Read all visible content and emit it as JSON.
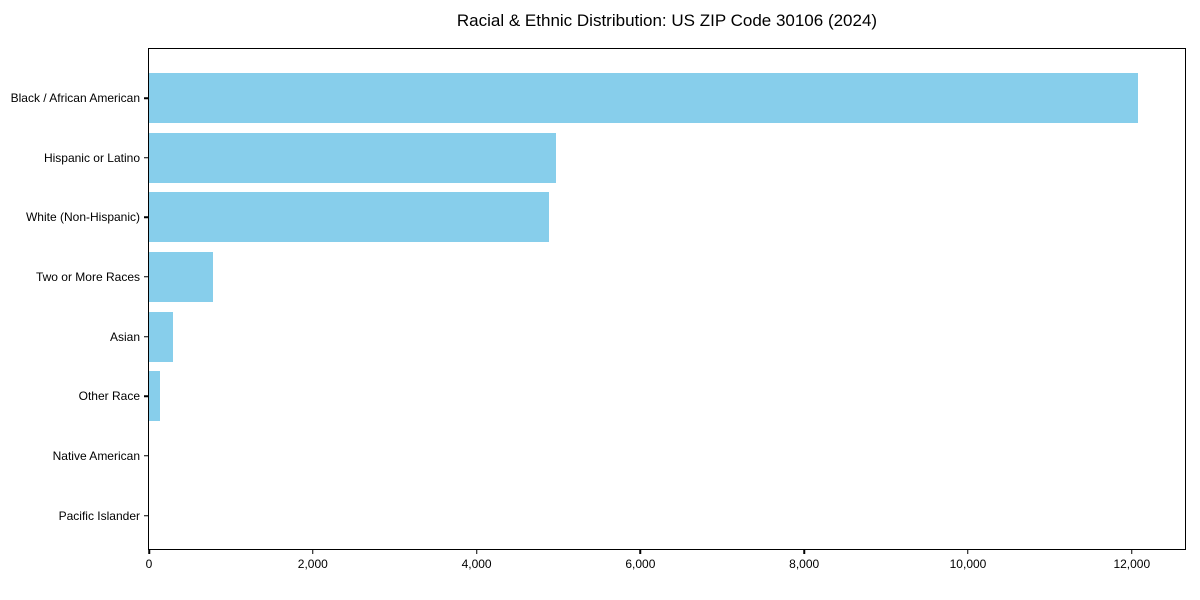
{
  "chart_data": {
    "type": "bar",
    "orientation": "horizontal",
    "title": "Racial & Ethnic Distribution: US ZIP Code 30106 (2024)",
    "categories": [
      "Black / African American",
      "Hispanic or Latino",
      "White (Non-Hispanic)",
      "Two or More Races",
      "Asian",
      "Other Race",
      "Native American",
      "Pacific Islander"
    ],
    "values": [
      12070,
      4970,
      4880,
      780,
      290,
      130,
      0,
      0
    ],
    "xlabel": "",
    "ylabel": "",
    "xlim": [
      0,
      12674
    ],
    "xticks": [
      0,
      2000,
      4000,
      6000,
      8000,
      10000,
      12000
    ],
    "xtick_labels": [
      "0",
      "2,000",
      "4,000",
      "6,000",
      "8,000",
      "10,000",
      "12,000"
    ],
    "grid": false,
    "legend": "none",
    "bar_color": "#87CEEB",
    "axis_color": "#000000",
    "background_color": "#ffffff"
  }
}
